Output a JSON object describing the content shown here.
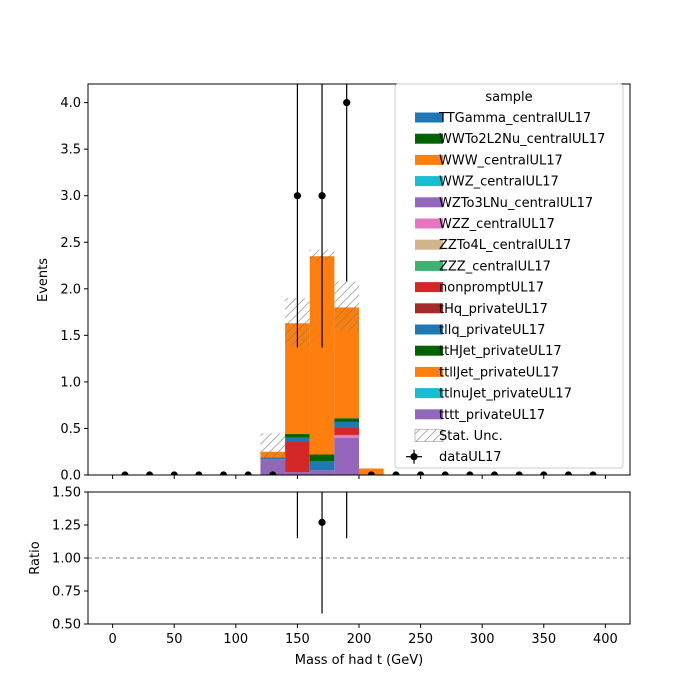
{
  "chart_data": {
    "type": "bar",
    "x_label": "Mass of had t (GeV)",
    "main_ylabel": "Events",
    "ratio_ylabel": "Ratio",
    "xlim": [
      -20,
      420
    ],
    "main_ylim": [
      0,
      4.2
    ],
    "ratio_ylim": [
      0.5,
      1.5
    ],
    "x_ticks": [
      0,
      50,
      100,
      150,
      200,
      250,
      300,
      350,
      400
    ],
    "main_y_ticks": [
      "0.0",
      "0.5",
      "1.0",
      "1.5",
      "2.0",
      "2.5",
      "3.0",
      "3.5",
      "4.0"
    ],
    "ratio_y_ticks": [
      "0.50",
      "0.75",
      "1.00",
      "1.25",
      "1.50"
    ],
    "legend": {
      "title": "sample",
      "placement": "top-right",
      "entries": [
        {
          "label": "TTGamma_centralUL17",
          "color": "#1f77b4"
        },
        {
          "label": "WWTo2L2Nu_centralUL17",
          "color": "#006400"
        },
        {
          "label": "WWW_centralUL17",
          "color": "#ff7f0e"
        },
        {
          "label": "WWZ_centralUL17",
          "color": "#17becf"
        },
        {
          "label": "WZTo3LNu_centralUL17",
          "color": "#9467bd"
        },
        {
          "label": "WZZ_centralUL17",
          "color": "#e377c2"
        },
        {
          "label": "ZZTo4L_centralUL17",
          "color": "#d2b48c"
        },
        {
          "label": "ZZZ_centralUL17",
          "color": "#3cb371"
        },
        {
          "label": "nonpromptUL17",
          "color": "#d62728"
        },
        {
          "label": "tHq_privateUL17",
          "color": "#a52a2a"
        },
        {
          "label": "tllq_privateUL17",
          "color": "#1f77b4"
        },
        {
          "label": "ttHJet_privateUL17",
          "color": "#006400"
        },
        {
          "label": "ttllJet_privateUL17",
          "color": "#ff7f0e"
        },
        {
          "label": "ttlnuJet_privateUL17",
          "color": "#17becf"
        },
        {
          "label": "tttt_privateUL17",
          "color": "#9467bd"
        }
      ],
      "stat_unc_label": "Stat. Unc.",
      "data_label": "dataUL17"
    },
    "stacks": [
      {
        "x_low": 120,
        "x_high": 140,
        "segments": [
          {
            "sample": "tttt_privateUL17",
            "value": 0.17,
            "color": "#9467bd"
          },
          {
            "sample": "tllq_privateUL17",
            "value": 0.02,
            "color": "#1f77b4"
          },
          {
            "sample": "ttllJet_privateUL17",
            "value": 0.06,
            "color": "#ff7f0e"
          }
        ],
        "unc_low": 0.05,
        "unc_high": 0.45
      },
      {
        "x_low": 140,
        "x_high": 160,
        "segments": [
          {
            "sample": "WZTo3LNu_centralUL17",
            "value": 0.03,
            "color": "#9467bd"
          },
          {
            "sample": "nonpromptUL17",
            "value": 0.33,
            "color": "#d62728"
          },
          {
            "sample": "tllq_privateUL17",
            "value": 0.04,
            "color": "#1f77b4"
          },
          {
            "sample": "ttHJet_privateUL17",
            "value": 0.04,
            "color": "#006400"
          },
          {
            "sample": "ttllJet_privateUL17",
            "value": 1.19,
            "color": "#ff7f0e"
          }
        ],
        "unc_low": 1.38,
        "unc_high": 1.9
      },
      {
        "x_low": 160,
        "x_high": 180,
        "segments": [
          {
            "sample": "WZTo3LNu_centralUL17",
            "value": 0.05,
            "color": "#9467bd"
          },
          {
            "sample": "tllq_privateUL17",
            "value": 0.1,
            "color": "#1f77b4"
          },
          {
            "sample": "ttHJet_privateUL17",
            "value": 0.07,
            "color": "#006400"
          },
          {
            "sample": "ttllJet_privateUL17",
            "value": 2.13,
            "color": "#ff7f0e"
          }
        ],
        "unc_low": 2.3,
        "unc_high": 2.42
      },
      {
        "x_low": 180,
        "x_high": 200,
        "segments": [
          {
            "sample": "tttt_privateUL17",
            "value": 0.4,
            "color": "#9467bd"
          },
          {
            "sample": "WZZ_centralUL17",
            "value": 0.03,
            "color": "#e377c2"
          },
          {
            "sample": "nonpromptUL17",
            "value": 0.08,
            "color": "#d62728"
          },
          {
            "sample": "tllq_privateUL17",
            "value": 0.06,
            "color": "#1f77b4"
          },
          {
            "sample": "ttHJet_privateUL17",
            "value": 0.04,
            "color": "#006400"
          },
          {
            "sample": "ttllJet_privateUL17",
            "value": 1.19,
            "color": "#ff7f0e"
          }
        ],
        "unc_low": 1.55,
        "unc_high": 2.08
      },
      {
        "x_low": 200,
        "x_high": 220,
        "segments": [
          {
            "sample": "ttllJet_privateUL17",
            "value": 0.07,
            "color": "#ff7f0e"
          }
        ],
        "unc_low": 0.07,
        "unc_high": 0.07
      }
    ],
    "data_points": [
      {
        "x": 10,
        "y": 0,
        "err_low": 0,
        "err_high": 0
      },
      {
        "x": 30,
        "y": 0,
        "err_low": 0,
        "err_high": 0
      },
      {
        "x": 50,
        "y": 0,
        "err_low": 0,
        "err_high": 0
      },
      {
        "x": 70,
        "y": 0,
        "err_low": 0,
        "err_high": 0
      },
      {
        "x": 90,
        "y": 0,
        "err_low": 0,
        "err_high": 0
      },
      {
        "x": 110,
        "y": 0,
        "err_low": 0,
        "err_high": 0
      },
      {
        "x": 130,
        "y": 0,
        "err_low": 0,
        "err_high": 0
      },
      {
        "x": 150,
        "y": 3.0,
        "err_low": 1.63,
        "err_high": 2.4
      },
      {
        "x": 170,
        "y": 3.0,
        "err_low": 1.63,
        "err_high": 2.4
      },
      {
        "x": 190,
        "y": 4.0,
        "err_low": 1.92,
        "err_high": 2.2
      },
      {
        "x": 210,
        "y": 0,
        "err_low": 0,
        "err_high": 0
      },
      {
        "x": 230,
        "y": 0,
        "err_low": 0,
        "err_high": 0
      },
      {
        "x": 250,
        "y": 0,
        "err_low": 0,
        "err_high": 0
      },
      {
        "x": 270,
        "y": 0,
        "err_low": 0,
        "err_high": 0
      },
      {
        "x": 290,
        "y": 0,
        "err_low": 0,
        "err_high": 0
      },
      {
        "x": 310,
        "y": 0,
        "err_low": 0,
        "err_high": 0
      },
      {
        "x": 330,
        "y": 0,
        "err_low": 0,
        "err_high": 0
      },
      {
        "x": 350,
        "y": 0,
        "err_low": 0,
        "err_high": 0
      },
      {
        "x": 370,
        "y": 0,
        "err_low": 0,
        "err_high": 0
      },
      {
        "x": 390,
        "y": 0,
        "err_low": 0,
        "err_high": 0
      }
    ],
    "ratio_points": [
      {
        "x": 150,
        "y": null,
        "err_low": 0.35,
        "err_high": 0.7
      },
      {
        "x": 170,
        "y": 1.27,
        "err_low": 0.69,
        "err_high": 0.9
      },
      {
        "x": 190,
        "y": null,
        "err_low": 0.35,
        "err_high": 0.7
      }
    ],
    "ratio_reference": 1.0
  }
}
